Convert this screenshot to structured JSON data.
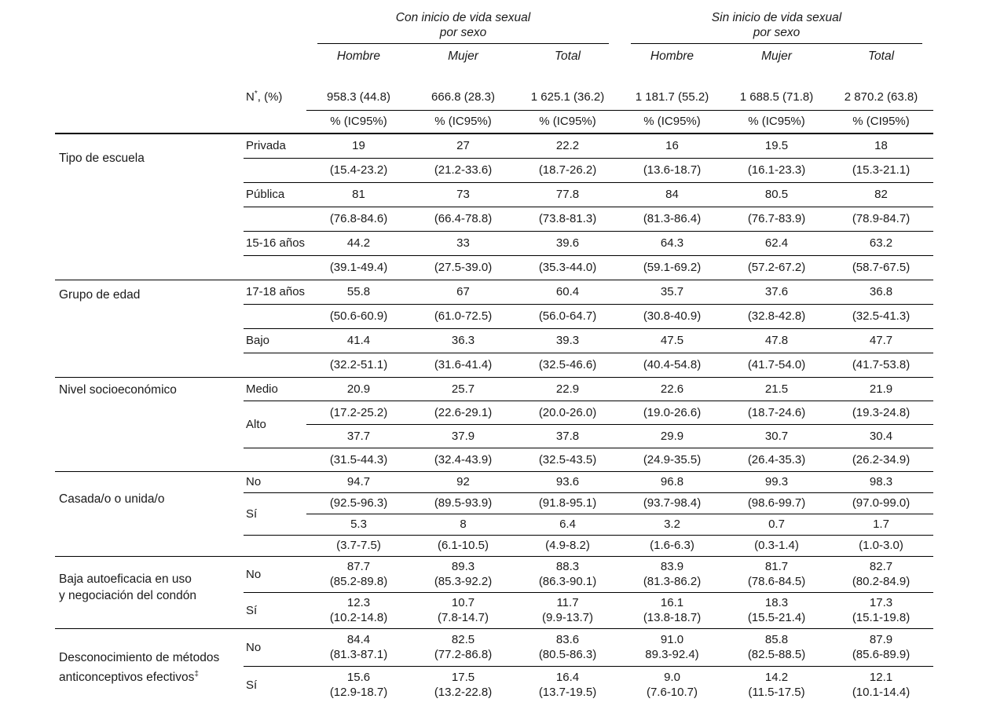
{
  "header": {
    "group_left": {
      "line1": "Con inicio de vida sexual",
      "line2": "por sexo"
    },
    "group_right": {
      "line1": "Sin inicio de vida sexual",
      "line2": "por sexo"
    },
    "sex_cols": [
      "Hombre",
      "Mujer",
      "Total",
      "Hombre",
      "Mujer",
      "Total"
    ],
    "n_label": {
      "base": "N",
      "sup": "*",
      "rest": ", (%)"
    },
    "n_values": [
      "958.3 (44.8)",
      "666.8 (28.3)",
      "1 625.1 (36.2)",
      "1 181.7 (55.2)",
      "1 688.5 (71.8)",
      "2 870.2 (63.8)"
    ],
    "pct_headers": [
      "% (IC95%)",
      "% (IC95%)",
      "% (IC95%)",
      "% (IC95%)",
      "% (IC95%)",
      "% (CI95%)"
    ]
  },
  "groups": [
    {
      "label_lines": [
        "Tipo de escuela"
      ],
      "rows": [
        {
          "sub": "Privada",
          "values": [
            "19",
            "27",
            "22.2",
            "16",
            "19.5",
            "18"
          ],
          "ci": [
            "(15.4-23.2)",
            "(21.2-33.6)",
            "(18.7-26.2)",
            "(13.6-18.7)",
            "(16.1-23.3)",
            "(15.3-21.1)"
          ]
        },
        {
          "sub": "Pública",
          "values": [
            "81",
            "73",
            "77.8",
            "84",
            "80.5",
            "82"
          ],
          "ci": [
            "(76.8-84.6)",
            "(66.4-78.8)",
            "(73.8-81.3)",
            "(81.3-86.4)",
            "(76.7-83.9)",
            "(78.9-84.7)"
          ]
        },
        {
          "sub": "15-16 años",
          "values": [
            "44.2",
            "33",
            "39.6",
            "64.3",
            "62.4",
            "63.2"
          ],
          "ci": [
            "(39.1-49.4)",
            "(27.5-39.0)",
            "(35.3-44.0)",
            "(59.1-69.2)",
            "(57.2-67.2)",
            "(58.7-67.5)"
          ]
        }
      ]
    },
    {
      "label_lines": [
        "Grupo de edad"
      ],
      "rows": [
        {
          "sub": "17-18 años",
          "values": [
            "55.8",
            "67",
            "60.4",
            "35.7",
            "37.6",
            "36.8"
          ],
          "ci": [
            "(50.6-60.9)",
            "(61.0-72.5)",
            "(56.0-64.7)",
            "(30.8-40.9)",
            "(32.8-42.8)",
            "(32.5-41.3)"
          ]
        },
        {
          "sub": "Bajo",
          "values": [
            "41.4",
            "36.3",
            "39.3",
            "47.5",
            "47.8",
            "47.7"
          ],
          "ci": [
            "(32.2-51.1)",
            "(31.6-41.4)",
            "(32.5-46.6)",
            "(40.4-54.8)",
            "(41.7-54.0)",
            "(41.7-53.8)"
          ]
        }
      ]
    },
    {
      "label_lines": [
        "Nivel socioeconómico"
      ],
      "rows": [
        {
          "sub": "Medio",
          "values": [
            "20.9",
            "25.7",
            "22.9",
            "22.6",
            "21.5",
            "21.9"
          ],
          "ci": [
            "(17.2-25.2)",
            "(22.6-29.1)",
            "(20.0-26.0)",
            "(19.0-26.6)",
            "(18.7-24.6)",
            "(19.3-24.8)"
          ]
        },
        {
          "sub": "Alto",
          "values": [
            "37.7",
            "37.9",
            "37.8",
            "29.9",
            "30.7",
            "30.4"
          ],
          "ci": [
            "(31.5-44.3)",
            "(32.4-43.9)",
            "(32.5-43.5)",
            "(24.9-35.5)",
            "(26.4-35.3)",
            "(26.2-34.9)"
          ]
        }
      ]
    },
    {
      "label_lines": [
        "Casada/o o unida/o"
      ],
      "rows": [
        {
          "sub": "No",
          "values": [
            "94.7",
            "92",
            "93.6",
            "96.8",
            "99.3",
            "98.3"
          ],
          "ci": [
            "(92.5-96.3)",
            "(89.5-93.9)",
            "(91.8-95.1)",
            "(93.7-98.4)",
            "(98.6-99.7)",
            "(97.0-99.0)"
          ]
        },
        {
          "sub": "Sí",
          "values": [
            "5.3",
            "8",
            "6.4",
            "3.2",
            "0.7",
            "1.7"
          ],
          "ci": [
            "(3.7-7.5)",
            "(6.1-10.5)",
            "(4.9-8.2)",
            "(1.6-6.3)",
            "(0.3-1.4)",
            "(1.0-3.0)"
          ]
        }
      ]
    },
    {
      "label_lines": [
        "Baja autoeficacia en uso",
        "y negociación del condón"
      ],
      "rows": [
        {
          "sub": "No",
          "values": [
            "87.7",
            "89.3",
            "88.3",
            "83.9",
            "81.7",
            "82.7"
          ],
          "ci": [
            "(85.2-89.8)",
            "(85.3-92.2)",
            "(86.3-90.1)",
            "(81.3-86.2)",
            "(78.6-84.5)",
            "(80.2-84.9)"
          ]
        },
        {
          "sub": "Sí",
          "values": [
            "12.3",
            "10.7",
            "11.7",
            "16.1",
            "18.3",
            "17.3"
          ],
          "ci": [
            "(10.2-14.8)",
            "(7.8-14.7)",
            "(9.9-13.7)",
            "(13.8-18.7)",
            "(15.5-21.4)",
            "(15.1-19.8)"
          ]
        }
      ]
    },
    {
      "label_lines": [
        "Desconocimiento de métodos",
        "anticonceptivos efectivos"
      ],
      "label_sup": "‡",
      "rows": [
        {
          "sub": "No",
          "values": [
            "84.4",
            "82.5",
            "83.6",
            "91.0",
            "85.8",
            "87.9"
          ],
          "ci": [
            "(81.3-87.1)",
            "(77.2-86.8)",
            "(80.5-86.3)",
            "89.3-92.4)",
            "(82.5-88.5)",
            "(85.6-89.9)"
          ]
        },
        {
          "sub": "Sí",
          "values": [
            "15.6",
            "17.5",
            "16.4",
            "9.0",
            "14.2",
            "12.1"
          ],
          "ci": [
            "(12.9-18.7)",
            "(13.2-22.8)",
            "(13.7-19.5)",
            "(7.6-10.7)",
            "(11.5-17.5)",
            "(10.1-14.4)"
          ]
        }
      ]
    }
  ]
}
